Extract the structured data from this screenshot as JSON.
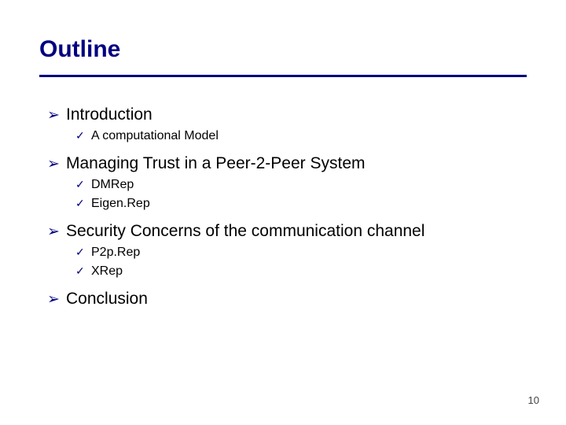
{
  "slide": {
    "title": "Outline",
    "title_color": "#000080",
    "rule_color": "#000080",
    "background": "#ffffff",
    "page_number": "10",
    "bullets": {
      "arrow": "➢",
      "check": "✓"
    },
    "items": [
      {
        "label": "Introduction",
        "children": [
          {
            "label": "A computational Model"
          }
        ]
      },
      {
        "label": "Managing Trust in a Peer-2-Peer System",
        "children": [
          {
            "label": "DMRep"
          },
          {
            "label": "Eigen.Rep"
          }
        ]
      },
      {
        "label": "Security Concerns of the communication channel",
        "children": [
          {
            "label": "P2p.Rep"
          },
          {
            "label": "XRep"
          }
        ]
      },
      {
        "label": "Conclusion",
        "children": []
      }
    ]
  }
}
